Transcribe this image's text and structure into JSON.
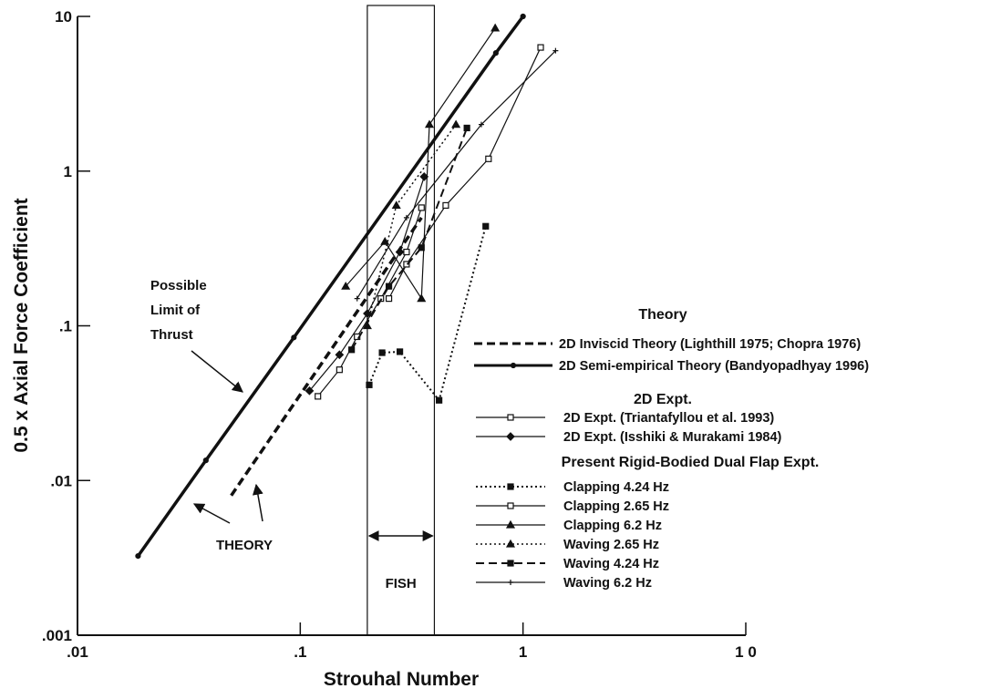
{
  "chart_data": {
    "type": "line",
    "x_label": "Strouhal Number",
    "y_label": "0.5 x Axial Force Coefficient",
    "log_x": true,
    "log_y": true,
    "xlim": [
      0.01,
      10
    ],
    "ylim": [
      0.001,
      10
    ],
    "xticks": [
      {
        "value": 0.01,
        "label": ".01"
      },
      {
        "value": 0.1,
        "label": ".1"
      },
      1,
      {
        "value": 10,
        "label": "1 0"
      }
    ],
    "yticks": [
      {
        "value": 0.001,
        "label": ".001"
      },
      {
        "value": 0.01,
        "label": ".01"
      },
      {
        "value": 0.1,
        "label": ".1"
      },
      1,
      10
    ],
    "legend_headers": [
      "Theory",
      "2D  Expt.",
      "Present  Rigid-Bodied  Dual  Flap  Expt."
    ],
    "annotations": {
      "limit": [
        "Possible",
        "Limit  of",
        "Thrust"
      ],
      "theory": "THEORY",
      "fish": "FISH"
    },
    "fish_range": [
      0.2,
      0.4
    ],
    "series": [
      {
        "name": "2D Inviscid Theory (Lighthill 1975; Chopra 1976)",
        "color": "#111",
        "dash": "dashed",
        "width": 3.5,
        "marker": "none",
        "x": [
          0.049,
          0.35
        ],
        "values": [
          0.008,
          0.5
        ]
      },
      {
        "name": "2D Semi-empirical Theory (Bandyopadhyay 1996)",
        "color": "#111",
        "dash": "solid",
        "width": 3.5,
        "marker": "dot",
        "x": [
          0.0187,
          0.0377,
          0.0936,
          0.755,
          1.0
        ],
        "values": [
          0.00325,
          0.0135,
          0.084,
          5.8,
          10
        ]
      },
      {
        "name": "2D Expt. (Triantafyllou et al. 1993)",
        "color": "#111",
        "dash": "solid",
        "width": 1.2,
        "marker": "open-square",
        "x": [
          0.12,
          0.15,
          0.18,
          0.23,
          0.3,
          0.35
        ],
        "values": [
          0.035,
          0.052,
          0.085,
          0.15,
          0.3,
          0.58
        ]
      },
      {
        "name": "2D Expt. (Isshiki & Murakami 1984)",
        "color": "#111",
        "dash": "solid",
        "width": 1.2,
        "marker": "diamond",
        "x": [
          0.11,
          0.15,
          0.2,
          0.28,
          0.36
        ],
        "values": [
          0.038,
          0.065,
          0.12,
          0.3,
          0.92
        ]
      },
      {
        "name": "Clapping 4.24 Hz",
        "color": "#111",
        "dash": "dotted",
        "width": 2,
        "marker": "square",
        "x": [
          0.204,
          0.233,
          0.28,
          0.42,
          0.68
        ],
        "values": [
          0.0415,
          0.067,
          0.068,
          0.033,
          0.44
        ]
      },
      {
        "name": "Clapping 2.65 Hz",
        "color": "#111",
        "dash": "solid",
        "width": 1.2,
        "marker": "open-square",
        "x": [
          0.25,
          0.3,
          0.45,
          0.7,
          1.2
        ],
        "values": [
          0.15,
          0.25,
          0.6,
          1.2,
          6.3
        ]
      },
      {
        "name": "Clapping 6.2 Hz",
        "color": "#111",
        "dash": "solid",
        "width": 1.2,
        "marker": "triangle",
        "x": [
          0.16,
          0.24,
          0.35,
          0.38,
          0.75
        ],
        "values": [
          0.18,
          0.35,
          0.15,
          2.0,
          8.4
        ]
      },
      {
        "name": "Waving 2.65 Hz",
        "color": "#111",
        "dash": "dotted",
        "width": 1.5,
        "marker": "triangle",
        "x": [
          0.2,
          0.27,
          0.5
        ],
        "values": [
          0.1,
          0.6,
          2.0
        ]
      },
      {
        "name": "Waving 4.24 Hz",
        "color": "#111",
        "dash": "dashed",
        "width": 2,
        "marker": "square",
        "x": [
          0.17,
          0.25,
          0.35,
          0.56
        ],
        "values": [
          0.07,
          0.18,
          0.32,
          1.9
        ]
      },
      {
        "name": "Waving 6.2 Hz",
        "color": "#111",
        "dash": "solid",
        "width": 1.2,
        "marker": "plus",
        "x": [
          0.18,
          0.3,
          0.65,
          1.4
        ],
        "values": [
          0.15,
          0.5,
          2.0,
          6.0
        ]
      }
    ]
  }
}
